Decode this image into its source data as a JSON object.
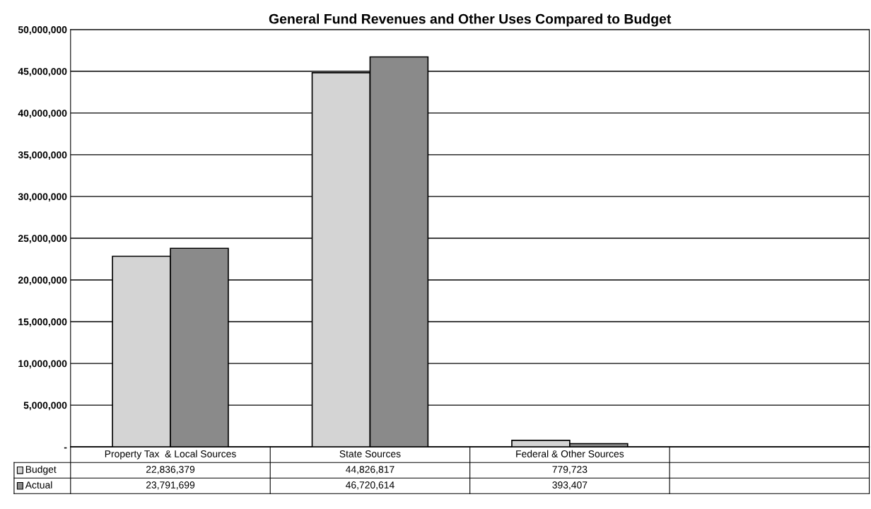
{
  "chart_data": {
    "type": "bar",
    "title": "General Fund Revenues and Other Uses Compared to Budget",
    "categories": [
      "Property Tax  & Local Sources",
      "State Sources",
      "Federal & Other Sources",
      null
    ],
    "series": [
      {
        "name": "Budget",
        "color": "#d4d4d4",
        "values": [
          22836379,
          44826817,
          779723,
          null
        ],
        "value_labels": [
          "22,836,379",
          "44,826,817",
          "779,723",
          null
        ]
      },
      {
        "name": "Actual",
        "color": "#8a8a8a",
        "values": [
          23791699,
          46720614,
          393407,
          null
        ],
        "value_labels": [
          "23,791,699",
          "46,720,614",
          "393,407",
          null
        ]
      }
    ],
    "ylim": [
      0,
      50000000
    ],
    "yticks": [
      {
        "value": 0,
        "label": "-"
      },
      {
        "value": 5000000,
        "label": "5,000,000"
      },
      {
        "value": 10000000,
        "label": "10,000,000"
      },
      {
        "value": 15000000,
        "label": "15,000,000"
      },
      {
        "value": 20000000,
        "label": "20,000,000"
      },
      {
        "value": 25000000,
        "label": "25,000,000"
      },
      {
        "value": 30000000,
        "label": "30,000,000"
      },
      {
        "value": 35000000,
        "label": "35,000,000"
      },
      {
        "value": 40000000,
        "label": "40,000,000"
      },
      {
        "value": 45000000,
        "label": "45,000,000"
      },
      {
        "value": 50000000,
        "label": "50,000,000"
      }
    ],
    "grid": "y",
    "legend": "bottom left"
  }
}
